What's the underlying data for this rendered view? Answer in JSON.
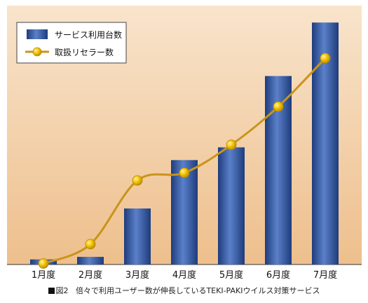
{
  "chart_data": {
    "type": "bar",
    "categories": [
      "1月度",
      "2月度",
      "3月度",
      "4月度",
      "5月度",
      "6月度",
      "7月度"
    ],
    "series": [
      {
        "name": "サービス利用台数",
        "type": "bar",
        "values": [
          2,
          3,
          22,
          41,
          46,
          74,
          95
        ]
      },
      {
        "name": "取扱リセラー数",
        "type": "line",
        "values": [
          0.4,
          8,
          33,
          36,
          47,
          62,
          81
        ]
      }
    ],
    "ylim": [
      0,
      100
    ],
    "grid": false,
    "legend": "top-left",
    "colors": {
      "plot_bg_top": "#f8e4cc",
      "plot_bg_bottom": "#eebf8c",
      "bar_dark": "#1e3c7c",
      "bar_light": "#5b80c9",
      "line": "#c9941a",
      "marker": "#f2c200"
    }
  },
  "caption": {
    "fig": "図2",
    "text": "倍々で利用ユーザー数が伸長しているTEKI-PAKIウイルス対策サービス"
  }
}
